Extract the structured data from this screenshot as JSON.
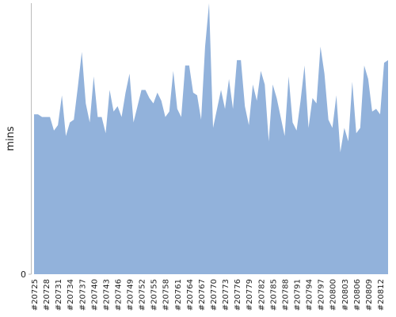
{
  "chart_data": {
    "type": "area",
    "y_label": "mins",
    "categories": [
      "#20725",
      null,
      null,
      "#20728",
      null,
      null,
      "#20731",
      null,
      null,
      "#20734",
      null,
      null,
      "#20737",
      null,
      null,
      "#20740",
      null,
      null,
      "#20743",
      null,
      null,
      "#20746",
      null,
      null,
      "#20749",
      null,
      null,
      "#20752",
      null,
      null,
      "#20755",
      null,
      null,
      "#20758",
      null,
      null,
      "#20761",
      null,
      null,
      "#20764",
      null,
      null,
      "#20767",
      null,
      null,
      "#20770",
      null,
      null,
      "#20773",
      null,
      null,
      "#20776",
      null,
      null,
      "#20779",
      null,
      null,
      "#20782",
      null,
      null,
      "#20785",
      null,
      null,
      "#20788",
      null,
      null,
      "#20791",
      null,
      null,
      "#20794",
      null,
      null,
      "#20797",
      null,
      null,
      "#20800",
      null,
      null,
      "#20803",
      null,
      null,
      "#20806",
      null,
      null,
      "#20809",
      null,
      null,
      "#20812",
      null,
      null
    ],
    "values": [
      59,
      59,
      58,
      58,
      58,
      53,
      55,
      66,
      51,
      56,
      57,
      69,
      82,
      63,
      56,
      73,
      58,
      58,
      52,
      68,
      60,
      62,
      58,
      67,
      74,
      56,
      62,
      68,
      68,
      65,
      63,
      67,
      64,
      58,
      60,
      75,
      61,
      58,
      77,
      77,
      67,
      66,
      57,
      84,
      100,
      54,
      61,
      68,
      61,
      72,
      61,
      79,
      79,
      62,
      55,
      70,
      64,
      75,
      70,
      49,
      70,
      65,
      58,
      51,
      73,
      56,
      53,
      64,
      77,
      54,
      65,
      63,
      84,
      74,
      57,
      54,
      66,
      45,
      54,
      49,
      71,
      52,
      54,
      77,
      72,
      60,
      61,
      59,
      78,
      79
    ],
    "color": "#92b2db",
    "ylim": [
      0,
      100
    ],
    "yticks": [
      0
    ]
  }
}
